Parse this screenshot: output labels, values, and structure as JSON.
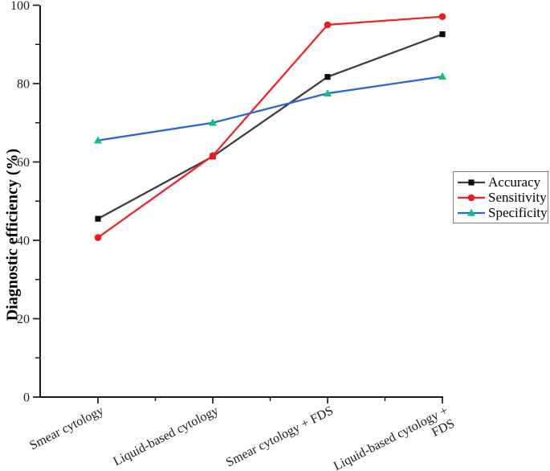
{
  "figure": {
    "background": "#ffffff",
    "axis_color": "#1a1a1a"
  },
  "chart_data": {
    "type": "line",
    "title": "",
    "xlabel": "",
    "ylabel": "Diagnostic efficiency (%)",
    "ylim": [
      0,
      100
    ],
    "yticks": [
      0,
      20,
      40,
      60,
      80,
      100
    ],
    "yticks_minor": [
      10,
      30,
      50,
      70,
      90
    ],
    "categories": [
      "Smear cytology",
      "Liquid-based cytology",
      "Smear cytology + FDS",
      "Liquid-based cytology +\nFDS"
    ],
    "grid": false,
    "legend_position": "outside-right",
    "series": [
      {
        "name": "Accuracy",
        "line_color": "#3d3d3d",
        "marker": "square",
        "marker_color": "#0d0d0d",
        "values": [
          45.5,
          61.4,
          81.7,
          92.6
        ]
      },
      {
        "name": "Sensitivity",
        "line_color": "#ee2428",
        "marker": "circle",
        "marker_color": "#ee1c22",
        "values": [
          40.7,
          61.6,
          95.0,
          97.1
        ]
      },
      {
        "name": "Specificity",
        "line_color": "#2a66d9",
        "marker": "triangle",
        "marker_color": "#12bf7d",
        "values": [
          65.5,
          70.0,
          77.5,
          81.8
        ]
      }
    ]
  }
}
